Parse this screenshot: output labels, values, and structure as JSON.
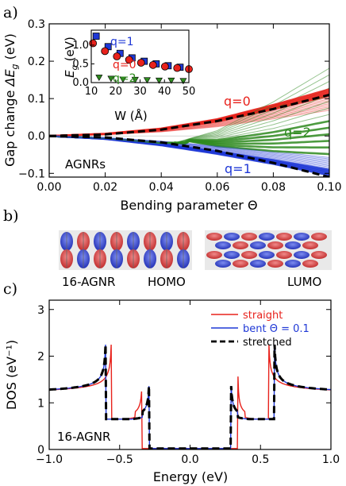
{
  "panels": {
    "a": "a)",
    "b": "b)",
    "c": "c)"
  },
  "orbitals": {
    "labels": [
      "16-AGNR",
      "HOMO",
      "LUMO"
    ]
  },
  "colors": {
    "q0": "#e8221c",
    "q1": "#1f38d6",
    "q2": "#2e8a1f",
    "straight": "#e8221c",
    "bent": "#1f38d6",
    "stretched": "#000000",
    "orbital_red": "#d63b3b",
    "orbital_blue": "#2d3fc8"
  },
  "chart_data": [
    {
      "type": "line",
      "panel": "a",
      "xlabel": "Bending parameter Θ",
      "ylabel": "Gap change ΔE_g (eV)",
      "ylabel_parts": {
        "prefix": "Gap change ",
        "sym": "ΔE",
        "sub": "g",
        "suffix": " (eV)"
      },
      "xlim": [
        0.0,
        0.1
      ],
      "ylim": [
        -0.11,
        0.3
      ],
      "xticks": [
        "0.00",
        "0.02",
        "0.04",
        "0.06",
        "0.08",
        "0.10"
      ],
      "xtick_values": [
        0.0,
        0.02,
        0.04,
        0.06,
        0.08,
        0.1
      ],
      "yticks": [
        "−0.1",
        "0.0",
        "0.1",
        "0.2",
        "0.3"
      ],
      "ytick_values": [
        -0.1,
        0.0,
        0.1,
        0.2,
        0.3
      ],
      "annotations": [
        "AGNRs",
        "q=0",
        "q=1",
        "q=2"
      ],
      "series": [
        {
          "name": "q=0",
          "color": "#e8221c",
          "x": [
            0.0,
            0.02,
            0.04,
            0.06,
            0.08,
            0.1
          ],
          "y": [
            0.0,
            0.006,
            0.02,
            0.045,
            0.083,
            0.125
          ]
        },
        {
          "name": "q=1",
          "color": "#1f38d6",
          "x": [
            0.0,
            0.02,
            0.04,
            0.06,
            0.08,
            0.1
          ],
          "y": [
            0.0,
            -0.008,
            -0.025,
            -0.048,
            -0.075,
            -0.105
          ]
        },
        {
          "name": "q=2",
          "color": "#2e8a1f",
          "x": [
            0.0,
            0.02,
            0.04,
            0.06,
            0.08,
            0.1
          ],
          "y": [
            0.0,
            -0.007,
            -0.02,
            -0.012,
            0.03,
            0.085
          ]
        },
        {
          "name": "",
          "color": "#000000",
          "dashed": true,
          "x": [
            0.0,
            0.02,
            0.04,
            0.06,
            0.08,
            0.1
          ],
          "y": [
            0.0,
            0.004,
            0.017,
            0.04,
            0.072,
            0.11
          ]
        },
        {
          "name": "",
          "color": "#000000",
          "dashed": true,
          "x": [
            0.0,
            0.02,
            0.04,
            0.06,
            0.08,
            0.1
          ],
          "y": [
            0.0,
            -0.004,
            -0.017,
            -0.04,
            -0.072,
            -0.11
          ]
        }
      ]
    },
    {
      "type": "scatter",
      "panel": "a-inset",
      "xlabel": "W (Å)",
      "ylabel": "E_g (eV)",
      "ylabel_parts": {
        "sym": "E",
        "sub": "g",
        "suffix": " (eV)"
      },
      "xlim": [
        10,
        50
      ],
      "ylim": [
        0,
        1.4
      ],
      "xticks": [
        "10",
        "20",
        "30",
        "40",
        "50"
      ],
      "xtick_values": [
        10,
        20,
        30,
        40,
        50
      ],
      "yticks": [
        "0.0",
        "0.5",
        "1.0"
      ],
      "ytick_values": [
        0,
        0.5,
        1.0
      ],
      "annotations": [
        "q=1",
        "q=0",
        "q=2"
      ],
      "series": [
        {
          "name": "q=1",
          "color": "#1f38d6",
          "marker": "square",
          "x": [
            12.0,
            16.9,
            21.8,
            26.7,
            31.7,
            36.6,
            41.5,
            46.4
          ],
          "y": [
            1.24,
            0.96,
            0.78,
            0.66,
            0.57,
            0.5,
            0.45,
            0.41
          ]
        },
        {
          "name": "q=0",
          "color": "#e8221c",
          "marker": "circle",
          "x": [
            10.7,
            15.6,
            20.5,
            25.5,
            30.4,
            35.3,
            40.2,
            45.2,
            50.0
          ],
          "y": [
            1.05,
            0.84,
            0.7,
            0.61,
            0.53,
            0.47,
            0.43,
            0.39,
            0.36
          ]
        },
        {
          "name": "q=2",
          "color": "#2e8a1f",
          "marker": "triangle",
          "x": [
            13.2,
            18.1,
            23.0,
            28.0,
            32.9,
            37.8,
            42.8,
            47.7
          ],
          "y": [
            0.14,
            0.11,
            0.09,
            0.08,
            0.07,
            0.06,
            0.06,
            0.05
          ]
        }
      ]
    },
    {
      "type": "line",
      "panel": "c",
      "xlabel": "Energy (eV)",
      "ylabel": "DOS (eV⁻¹)",
      "xlim": [
        -1.0,
        1.0
      ],
      "ylim": [
        0,
        3.2
      ],
      "xticks": [
        "−1.0",
        "−0.5",
        "0.0",
        "0.5",
        "1.0"
      ],
      "xtick_values": [
        -1.0,
        -0.5,
        0.0,
        0.5,
        1.0
      ],
      "yticks": [
        "0",
        "1",
        "2",
        "3"
      ],
      "ytick_values": [
        0,
        1,
        2,
        3
      ],
      "legend": [
        "straight",
        "bent Θ = 0.1",
        "stretched"
      ],
      "legend_position": "top-right",
      "annotations": [
        "16-AGNR"
      ],
      "series": [
        {
          "name": "straight",
          "color": "#e8221c",
          "gap": 0.34,
          "peak2": 0.56,
          "peak_height": 3.0,
          "second_height": 2.2
        },
        {
          "name": "bent Θ = 0.1",
          "color": "#1f38d6",
          "gap": 0.29,
          "peak2": 0.6,
          "peak_height": 3.1,
          "second_height": 2.2
        },
        {
          "name": "stretched",
          "color": "#000000",
          "dashed": true,
          "gap": 0.29,
          "peak2": 0.6,
          "peak_height": 3.1,
          "second_height": 2.2
        }
      ]
    }
  ]
}
